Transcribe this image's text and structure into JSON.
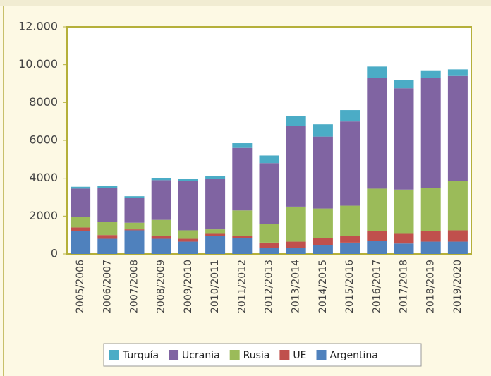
{
  "chart_data": {
    "type": "stacked_bar",
    "categories": [
      "2005/2006",
      "2006/2007",
      "2007/2008",
      "2008/2009",
      "2009/2010",
      "2010/2011",
      "2011/2012",
      "2012/2013",
      "2013/2014",
      "2014/2015",
      "2015/2016",
      "2016/2017",
      "2017/2018",
      "2018/2019",
      "2019/2020"
    ],
    "series": [
      {
        "name": "Turquía",
        "color": "#4bacc6",
        "values": [
          100,
          100,
          100,
          100,
          100,
          150,
          250,
          400,
          550,
          650,
          600,
          600,
          450,
          400,
          350
        ]
      },
      {
        "name": "Ucrania",
        "color": "#8064a2",
        "values": [
          1500,
          1800,
          1300,
          2100,
          2600,
          2650,
          3300,
          3200,
          4250,
          3800,
          4450,
          5850,
          5350,
          5800,
          5550
        ]
      },
      {
        "name": "Rusia",
        "color": "#9bbb59",
        "values": [
          550,
          700,
          350,
          850,
          450,
          200,
          1350,
          1000,
          1850,
          1550,
          1600,
          2250,
          2300,
          2300,
          2600
        ]
      },
      {
        "name": "UE",
        "color": "#c0504d",
        "values": [
          200,
          200,
          50,
          150,
          150,
          150,
          100,
          300,
          350,
          400,
          350,
          500,
          550,
          550,
          600
        ]
      },
      {
        "name": "Argentina",
        "color": "#4f81bd",
        "values": [
          1200,
          800,
          1250,
          800,
          650,
          950,
          850,
          300,
          300,
          450,
          600,
          700,
          550,
          650,
          650
        ]
      }
    ],
    "ylim": [
      0,
      12000
    ],
    "yticks": [
      0,
      2000,
      4000,
      6000,
      8000,
      {
        "value": 10000,
        "label": "10.000"
      },
      {
        "value": 12000,
        "label": "12.000"
      }
    ],
    "grid": false,
    "legend": "bottom"
  }
}
